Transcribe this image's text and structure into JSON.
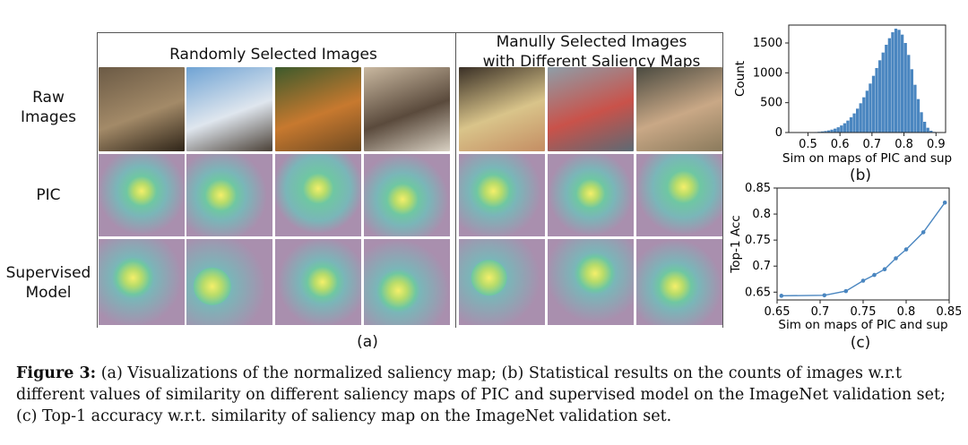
{
  "panel_a": {
    "group_random": "Randomly Selected Images",
    "group_manual_line1": "Manully Selected Images",
    "group_manual_line2": "with Different Saliency Maps",
    "row_raw": [
      "Raw",
      "Images"
    ],
    "row_pic": "PIC",
    "row_sup": [
      "Supervised",
      "Model"
    ],
    "label": "(a)",
    "raw_images": [
      {
        "name": "dog-image",
        "colors": [
          "#6b5a45",
          "#a38a68",
          "#2e2418"
        ]
      },
      {
        "name": "elephant-image",
        "colors": [
          "#6fa3d4",
          "#dfe6ee",
          "#4a4036"
        ]
      },
      {
        "name": "squash-image",
        "colors": [
          "#3d5a2c",
          "#c7792f",
          "#6e4a22"
        ]
      },
      {
        "name": "laptop-image",
        "colors": [
          "#c9b8a0",
          "#5a4a3c",
          "#d8d0c2"
        ]
      },
      {
        "name": "cassette-image",
        "colors": [
          "#3a3026",
          "#d9c48a",
          "#c48d63"
        ]
      },
      {
        "name": "boat-image",
        "colors": [
          "#8e9ea8",
          "#c9524a",
          "#5c6a74"
        ]
      },
      {
        "name": "people-image",
        "colors": [
          "#4a4a40",
          "#c9a886",
          "#8a7a5c"
        ]
      }
    ]
  },
  "panel_b": {
    "chart_data": {
      "type": "bar",
      "xlabel": "Sim on maps of PIC and sup",
      "ylabel": "Count",
      "xlim": [
        0.44,
        0.93
      ],
      "ylim": [
        0,
        1800
      ],
      "xticks": [
        "0.5",
        "0.6",
        "0.7",
        "0.8",
        "0.9"
      ],
      "yticks": [
        "0",
        "500",
        "1000",
        "1500"
      ],
      "bins": [
        0.5,
        0.51,
        0.52,
        0.53,
        0.54,
        0.55,
        0.56,
        0.57,
        0.58,
        0.59,
        0.6,
        0.61,
        0.62,
        0.63,
        0.64,
        0.65,
        0.66,
        0.67,
        0.68,
        0.69,
        0.7,
        0.71,
        0.72,
        0.73,
        0.74,
        0.75,
        0.76,
        0.77,
        0.78,
        0.79,
        0.8,
        0.81,
        0.82,
        0.83,
        0.84,
        0.85,
        0.86,
        0.87,
        0.88,
        0.89
      ],
      "values": [
        3,
        5,
        8,
        12,
        18,
        25,
        35,
        48,
        65,
        88,
        118,
        155,
        200,
        255,
        320,
        400,
        490,
        590,
        700,
        820,
        950,
        1080,
        1210,
        1340,
        1470,
        1580,
        1680,
        1740,
        1720,
        1640,
        1500,
        1300,
        1060,
        800,
        560,
        340,
        180,
        80,
        30,
        10
      ],
      "color": "#4a86c0"
    },
    "label": "(b)"
  },
  "panel_c": {
    "chart_data": {
      "type": "line",
      "xlabel": "Sim on maps of PIC and sup",
      "ylabel": "Top-1 Acc",
      "xlim": [
        0.65,
        0.85
      ],
      "ylim": [
        0.635,
        0.85
      ],
      "xticks": [
        "0.65",
        "0.7",
        "0.75",
        "0.8",
        "0.85"
      ],
      "yticks": [
        "0.65",
        "0.7",
        "0.75",
        "0.8",
        "0.85"
      ],
      "x": [
        0.655,
        0.705,
        0.73,
        0.75,
        0.763,
        0.775,
        0.788,
        0.8,
        0.82,
        0.845
      ],
      "y": [
        0.643,
        0.644,
        0.652,
        0.672,
        0.683,
        0.694,
        0.715,
        0.732,
        0.765,
        0.822
      ],
      "color": "#4a86c0"
    },
    "label": "(c)"
  },
  "caption": {
    "figure_label": "Figure 3:",
    "text": " (a) Visualizations of the normalized saliency map; (b) Statistical results on the counts of images w.r.t different values of similarity on different saliency maps of PIC and supervised model on the ImageNet validation set; (c) Top-1 accuracy w.r.t. similarity of saliency map on the ImageNet validation set."
  }
}
